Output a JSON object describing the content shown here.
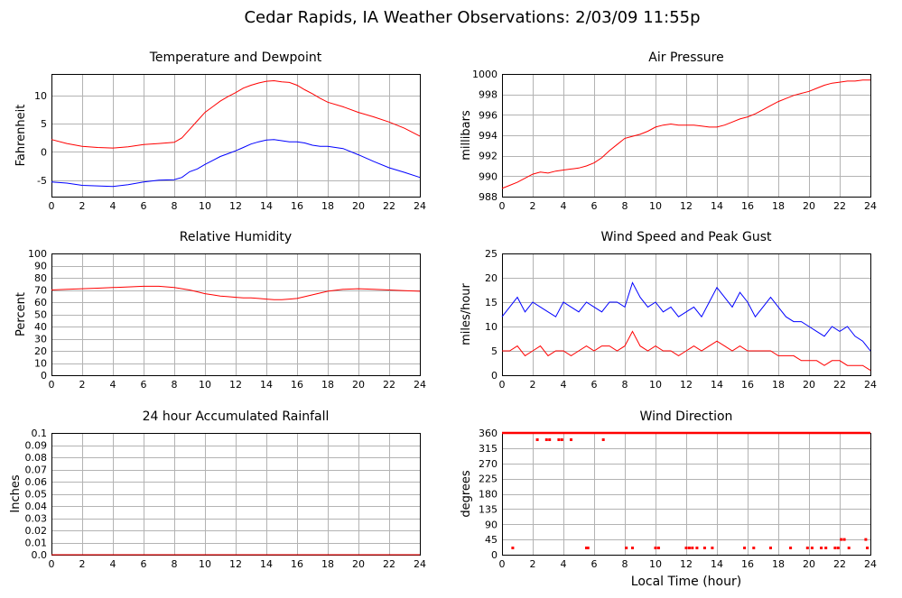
{
  "figure_title": "Cedar Rapids, IA Weather Observations: 2/03/09 11:55p",
  "shared_xlabel": "Local Time (hour)",
  "x_ticks": [
    0,
    2,
    4,
    6,
    8,
    10,
    12,
    14,
    16,
    18,
    20,
    22,
    24
  ],
  "chart_data": [
    {
      "type": "line",
      "title": "Temperature and Dewpoint",
      "xlabel": "",
      "ylabel": "Fahrenheit",
      "xlim": [
        0,
        24
      ],
      "ylim": [
        -7.9,
        13.8
      ],
      "y_ticks": [
        "-5",
        "0",
        "5",
        "10"
      ],
      "y_tick_values": [
        -5,
        0,
        5,
        10
      ],
      "grid": true,
      "series": [
        {
          "color": "#ff0000",
          "x": [
            0,
            1,
            2,
            3,
            4,
            5,
            6,
            7,
            8,
            8.5,
            9,
            9.5,
            10,
            10.5,
            11,
            11.5,
            12,
            12.5,
            13,
            13.5,
            14,
            14.5,
            15,
            15.5,
            16,
            16.5,
            17,
            17.5,
            18,
            19,
            20,
            21,
            22,
            23,
            24
          ],
          "y": [
            2.2,
            1.5,
            1.0,
            0.8,
            0.7,
            0.9,
            1.3,
            1.5,
            1.7,
            2.5,
            4.0,
            5.5,
            7.0,
            8.0,
            9.0,
            9.8,
            10.5,
            11.3,
            11.8,
            12.2,
            12.5,
            12.6,
            12.4,
            12.3,
            11.8,
            11.0,
            10.3,
            9.5,
            8.8,
            8.0,
            7.0,
            6.2,
            5.3,
            4.2,
            2.8
          ]
        },
        {
          "color": "#0000ff",
          "x": [
            0,
            1,
            2,
            3,
            4,
            5,
            6,
            7,
            8,
            8.5,
            9,
            9.5,
            10,
            10.5,
            11,
            11.5,
            12,
            12.5,
            13,
            13.5,
            14,
            14.5,
            15,
            15.5,
            16,
            16.5,
            17,
            17.5,
            18,
            19,
            20,
            21,
            22,
            23,
            24
          ],
          "y": [
            -5.3,
            -5.5,
            -5.9,
            -6.0,
            -6.1,
            -5.8,
            -5.3,
            -5.0,
            -4.9,
            -4.5,
            -3.5,
            -3.0,
            -2.2,
            -1.5,
            -0.8,
            -0.3,
            0.2,
            0.8,
            1.4,
            1.8,
            2.1,
            2.2,
            2.0,
            1.8,
            1.8,
            1.6,
            1.2,
            1.0,
            1.0,
            0.6,
            -0.5,
            -1.7,
            -2.8,
            -3.6,
            -4.5
          ]
        }
      ]
    },
    {
      "type": "line",
      "title": "Air Pressure",
      "xlabel": "",
      "ylabel": "millibars",
      "xlim": [
        0,
        24
      ],
      "ylim": [
        988,
        1000
      ],
      "y_ticks": [
        "988",
        "990",
        "992",
        "994",
        "996",
        "998",
        "1000"
      ],
      "y_tick_values": [
        988,
        990,
        992,
        994,
        996,
        998,
        1000
      ],
      "grid": true,
      "series": [
        {
          "color": "#ff0000",
          "x": [
            0,
            0.5,
            1,
            1.5,
            2,
            2.5,
            3,
            3.5,
            4,
            4.5,
            5,
            5.5,
            6,
            6.5,
            7,
            7.5,
            8,
            8.5,
            9,
            9.5,
            10,
            10.5,
            11,
            11.5,
            12,
            12.5,
            13,
            13.5,
            14,
            14.5,
            15,
            15.5,
            16,
            16.5,
            17,
            17.5,
            18,
            18.5,
            19,
            19.5,
            20,
            20.5,
            21,
            21.5,
            22,
            22.5,
            23,
            23.5,
            24
          ],
          "y": [
            988.8,
            989.1,
            989.4,
            989.8,
            990.2,
            990.4,
            990.3,
            990.5,
            990.6,
            990.7,
            990.8,
            991.0,
            991.3,
            991.8,
            992.5,
            993.1,
            993.7,
            993.9,
            994.1,
            994.4,
            994.8,
            995.0,
            995.1,
            995.0,
            995.0,
            995.0,
            994.9,
            994.8,
            994.8,
            995.0,
            995.3,
            995.6,
            995.8,
            996.1,
            996.5,
            996.9,
            997.3,
            997.6,
            997.9,
            998.1,
            998.3,
            998.6,
            998.9,
            999.1,
            999.2,
            999.3,
            999.3,
            999.4,
            999.4
          ]
        }
      ]
    },
    {
      "type": "line",
      "title": "Relative Humidity",
      "xlabel": "",
      "ylabel": "Percent",
      "xlim": [
        0,
        24
      ],
      "ylim": [
        0,
        100
      ],
      "y_ticks": [
        "0",
        "10",
        "20",
        "30",
        "40",
        "50",
        "60",
        "70",
        "80",
        "90",
        "100"
      ],
      "y_tick_values": [
        0,
        10,
        20,
        30,
        40,
        50,
        60,
        70,
        80,
        90,
        100
      ],
      "grid": true,
      "series": [
        {
          "color": "#ff0000",
          "x": [
            0,
            1,
            2,
            3,
            4,
            5,
            6,
            7,
            8,
            8.5,
            9,
            9.5,
            10,
            10.5,
            11,
            11.5,
            12,
            12.5,
            13,
            13.5,
            14,
            14.5,
            15,
            15.5,
            16,
            16.5,
            17,
            17.5,
            18,
            19,
            20,
            21,
            22,
            23,
            24
          ],
          "y": [
            70,
            70.5,
            71,
            71.5,
            72,
            72.5,
            73,
            73,
            72,
            71,
            70,
            68.5,
            67,
            66,
            65,
            64.5,
            64,
            63.5,
            63.5,
            63,
            62.5,
            62,
            62,
            62.5,
            63,
            64.5,
            66,
            67.5,
            69,
            70.5,
            71,
            70.5,
            70,
            69.5,
            69
          ]
        }
      ]
    },
    {
      "type": "line",
      "title": "Wind Speed and Peak Gust",
      "xlabel": "",
      "ylabel": "miles/hour",
      "xlim": [
        0,
        24
      ],
      "ylim": [
        0,
        25
      ],
      "y_ticks": [
        "0",
        "5",
        "10",
        "15",
        "20",
        "25"
      ],
      "y_tick_values": [
        0,
        5,
        10,
        15,
        20,
        25
      ],
      "grid": true,
      "series": [
        {
          "color": "#0000ff",
          "x": [
            0,
            0.5,
            1,
            1.5,
            2,
            2.5,
            3,
            3.5,
            4,
            4.5,
            5,
            5.5,
            6,
            6.5,
            7,
            7.5,
            8,
            8.5,
            9,
            9.5,
            10,
            10.5,
            11,
            11.5,
            12,
            12.5,
            13,
            13.5,
            14,
            14.5,
            15,
            15.5,
            16,
            16.5,
            17,
            17.5,
            18,
            18.5,
            19,
            19.5,
            20,
            20.5,
            21,
            21.5,
            22,
            22.5,
            23,
            23.5,
            24
          ],
          "y": [
            12,
            14,
            16,
            13,
            15,
            14,
            13,
            12,
            15,
            14,
            13,
            15,
            14,
            13,
            15,
            15,
            14,
            19,
            16,
            14,
            15,
            13,
            14,
            12,
            13,
            14,
            12,
            15,
            18,
            16,
            14,
            17,
            15,
            12,
            14,
            16,
            14,
            12,
            11,
            11,
            10,
            9,
            8,
            10,
            9,
            10,
            8,
            7,
            5
          ]
        },
        {
          "color": "#ff0000",
          "x": [
            0,
            0.5,
            1,
            1.5,
            2,
            2.5,
            3,
            3.5,
            4,
            4.5,
            5,
            5.5,
            6,
            6.5,
            7,
            7.5,
            8,
            8.5,
            9,
            9.5,
            10,
            10.5,
            11,
            11.5,
            12,
            12.5,
            13,
            13.5,
            14,
            14.5,
            15,
            15.5,
            16,
            16.5,
            17,
            17.5,
            18,
            18.5,
            19,
            19.5,
            20,
            20.5,
            21,
            21.5,
            22,
            22.5,
            23,
            23.5,
            24
          ],
          "y": [
            5,
            5,
            6,
            4,
            5,
            6,
            4,
            5,
            5,
            4,
            5,
            6,
            5,
            6,
            6,
            5,
            6,
            9,
            6,
            5,
            6,
            5,
            5,
            4,
            5,
            6,
            5,
            6,
            7,
            6,
            5,
            6,
            5,
            5,
            5,
            5,
            4,
            4,
            4,
            3,
            3,
            3,
            2,
            3,
            3,
            2,
            2,
            2,
            1
          ]
        }
      ]
    },
    {
      "type": "line",
      "title": "24 hour Accumulated Rainfall",
      "xlabel": "",
      "ylabel": "Inches",
      "xlim": [
        0,
        24
      ],
      "ylim": [
        0,
        0.1
      ],
      "y_ticks": [
        "0.0",
        "0.01",
        "0.02",
        "0.03",
        "0.04",
        "0.05",
        "0.06",
        "0.07",
        "0.08",
        "0.09",
        "0.1"
      ],
      "y_tick_values": [
        0,
        0.01,
        0.02,
        0.03,
        0.04,
        0.05,
        0.06,
        0.07,
        0.08,
        0.09,
        0.1
      ],
      "grid": true,
      "series": [
        {
          "color": "#ff0000",
          "x": [
            0,
            24
          ],
          "y": [
            0,
            0
          ]
        }
      ]
    },
    {
      "type": "scatter",
      "title": "Wind Direction",
      "xlabel": "Local Time (hour)",
      "ylabel": "degrees",
      "xlim": [
        0,
        24
      ],
      "ylim": [
        0,
        360
      ],
      "y_ticks": [
        "0",
        "45",
        "90",
        "135",
        "180",
        "225",
        "270",
        "315",
        "360"
      ],
      "y_tick_values": [
        0,
        45,
        90,
        135,
        180,
        225,
        270,
        315,
        360
      ],
      "grid": true,
      "series": [
        {
          "color": "#ff0000",
          "line_segments": [
            [
              0,
              24,
              360
            ]
          ],
          "points_340": [
            2.3,
            2.9,
            3.1,
            3.7,
            3.9,
            4.5,
            6.6
          ],
          "points_20": [
            0.7,
            5.5,
            5.6,
            8.1,
            8.5,
            10.0,
            10.2,
            12.0,
            12.2,
            12.4,
            12.7,
            13.2,
            13.7,
            15.8,
            16.4,
            17.5,
            18.8,
            19.9,
            20.2,
            20.8,
            21.1,
            21.7,
            21.9,
            22.6,
            23.8
          ],
          "points_45": [
            22.1,
            22.3,
            23.7
          ]
        }
      ]
    }
  ]
}
